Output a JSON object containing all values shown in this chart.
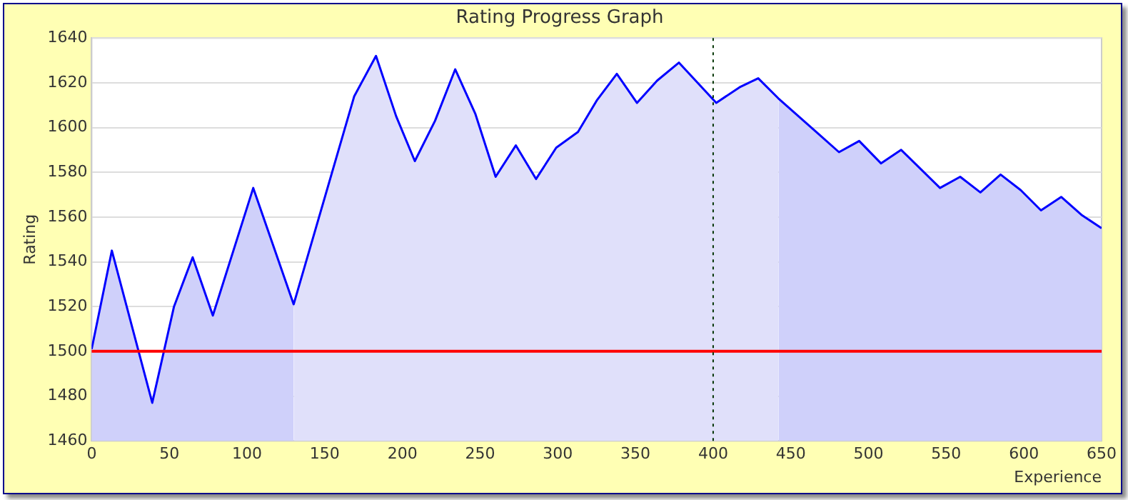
{
  "chart_data": {
    "type": "area",
    "title": "Rating Progress Graph",
    "xlabel": "Experience",
    "ylabel": "Rating",
    "series": [
      {
        "type": "area",
        "color": "#cfd0fa",
        "x": [
          0,
          13,
          39,
          53,
          65,
          78,
          104,
          130
        ],
        "values": [
          1501,
          1545,
          1477,
          1520,
          1542,
          1516,
          1573,
          1521
        ]
      },
      {
        "type": "area",
        "color": "#e0e0fa",
        "x": [
          130,
          169,
          183,
          196,
          208,
          221,
          234,
          247,
          260,
          273,
          286,
          299,
          313,
          325,
          338,
          351,
          364,
          378,
          402,
          417,
          429,
          442
        ],
        "values": [
          1521,
          1614,
          1632,
          1605,
          1585,
          1603,
          1626,
          1606,
          1578,
          1592,
          1577,
          1591,
          1598,
          1612,
          1624,
          1611,
          1621,
          1629,
          1611,
          1618,
          1622,
          1613
        ]
      },
      {
        "type": "area",
        "color": "#cfd0fa",
        "x": [
          442,
          468,
          481,
          494,
          508,
          521,
          546,
          559,
          572,
          585,
          598,
          611,
          624,
          637,
          650
        ],
        "values": [
          1613,
          1597,
          1589,
          1594,
          1584,
          1590,
          1573,
          1578,
          1571,
          1579,
          1572,
          1563,
          1569,
          1561,
          1555
        ]
      },
      {
        "type": "line",
        "color": "#0000ff",
        "x": [
          0,
          13,
          39,
          53,
          65,
          78,
          104,
          130,
          169,
          183,
          196,
          208,
          221,
          234,
          247,
          260,
          273,
          286,
          299,
          313,
          325,
          338,
          351,
          364,
          378,
          402,
          417,
          429,
          442,
          468,
          481,
          494,
          508,
          521,
          546,
          559,
          572,
          585,
          598,
          611,
          624,
          637,
          650
        ],
        "values": [
          1501,
          1545,
          1477,
          1520,
          1542,
          1516,
          1573,
          1521,
          1614,
          1632,
          1605,
          1585,
          1603,
          1626,
          1606,
          1578,
          1592,
          1577,
          1591,
          1598,
          1612,
          1624,
          1611,
          1621,
          1629,
          1611,
          1618,
          1622,
          1613,
          1597,
          1589,
          1594,
          1584,
          1590,
          1573,
          1578,
          1571,
          1579,
          1572,
          1563,
          1569,
          1561,
          1555
        ]
      }
    ],
    "xlim": [
      0,
      650
    ],
    "xticks": [
      0,
      50,
      100,
      150,
      200,
      250,
      300,
      350,
      400,
      450,
      500,
      550,
      600,
      650
    ],
    "ylim": [
      1460,
      1640
    ],
    "yticks": [
      1460,
      1480,
      1500,
      1520,
      1540,
      1560,
      1580,
      1600,
      1620,
      1640
    ],
    "grid": "y",
    "legend": false,
    "marker": "none",
    "ref_lines": [
      {
        "axis": "y",
        "value": 1500,
        "color": "#ff0000",
        "line_style": "solid"
      },
      {
        "axis": "x",
        "value": 400,
        "color": "#003300",
        "line_style": "dotted"
      }
    ]
  }
}
